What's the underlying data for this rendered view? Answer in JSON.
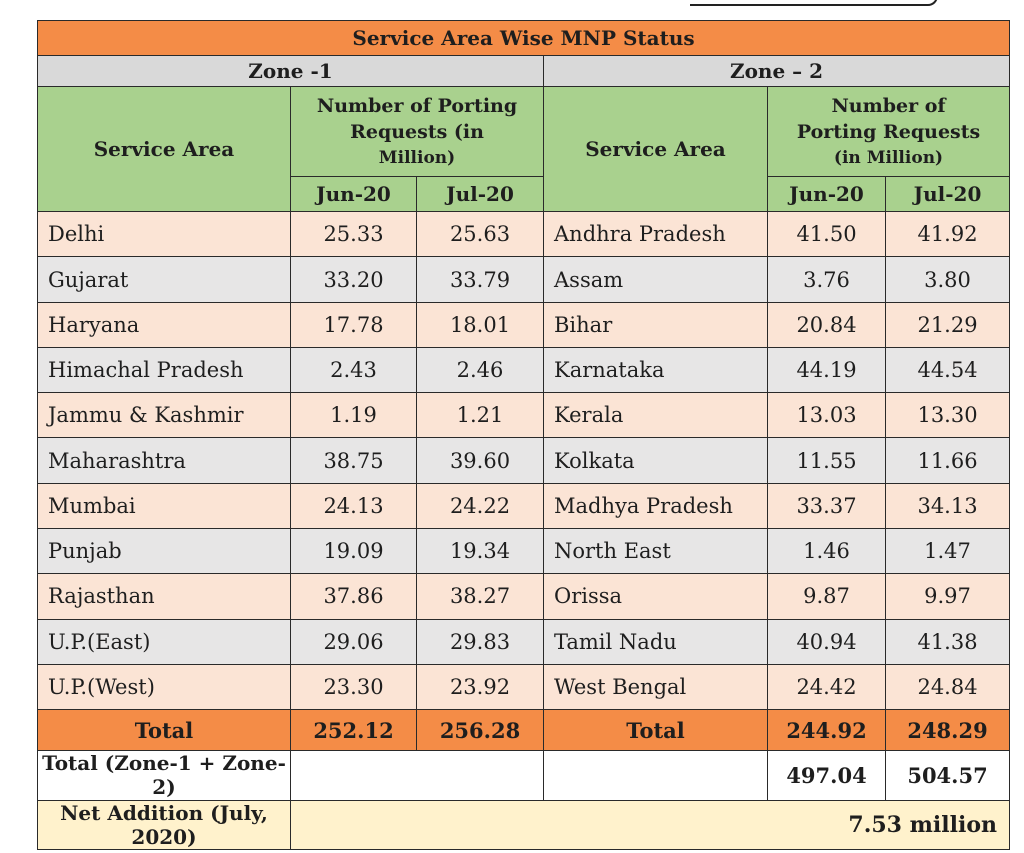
{
  "title": "Service Area Wise MNP Status",
  "zone1": {
    "label": "Zone -1",
    "header": {
      "service_area": "Service Area",
      "number_line1": "Number of Porting",
      "number_line2": "Requests (in",
      "number_line3": "Million)",
      "col_jun": "Jun-20",
      "col_jul": "Jul-20"
    },
    "rows": [
      {
        "area": "Delhi",
        "jun": "25.33",
        "jul": "25.63"
      },
      {
        "area": "Gujarat",
        "jun": "33.20",
        "jul": "33.79"
      },
      {
        "area": "Haryana",
        "jun": "17.78",
        "jul": "18.01"
      },
      {
        "area": "Himachal Pradesh",
        "jun": "2.43",
        "jul": "2.46"
      },
      {
        "area": "Jammu & Kashmir",
        "jun": "1.19",
        "jul": "1.21"
      },
      {
        "area": "Maharashtra",
        "jun": "38.75",
        "jul": "39.60"
      },
      {
        "area": "Mumbai",
        "jun": "24.13",
        "jul": "24.22"
      },
      {
        "area": "Punjab",
        "jun": "19.09",
        "jul": "19.34"
      },
      {
        "area": "Rajasthan",
        "jun": "37.86",
        "jul": "38.27"
      },
      {
        "area": "U.P.(East)",
        "jun": "29.06",
        "jul": "29.83"
      },
      {
        "area": "U.P.(West)",
        "jun": "23.30",
        "jul": "23.92"
      }
    ],
    "total": {
      "label": "Total",
      "jun": "252.12",
      "jul": "256.28"
    }
  },
  "zone2": {
    "label": "Zone – 2",
    "header": {
      "service_area": "Service Area",
      "number_line1": "Number of",
      "number_line2": "Porting Requests",
      "number_line3": "(in Million)",
      "col_jun": "Jun-20",
      "col_jul": "Jul-20"
    },
    "rows": [
      {
        "area": "Andhra Pradesh",
        "jun": "41.50",
        "jul": "41.92"
      },
      {
        "area": "Assam",
        "jun": "3.76",
        "jul": "3.80"
      },
      {
        "area": "Bihar",
        "jun": "20.84",
        "jul": "21.29"
      },
      {
        "area": "Karnataka",
        "jun": "44.19",
        "jul": "44.54"
      },
      {
        "area": "Kerala",
        "jun": "13.03",
        "jul": "13.30"
      },
      {
        "area": "Kolkata",
        "jun": "11.55",
        "jul": "11.66"
      },
      {
        "area": "Madhya Pradesh",
        "jun": "33.37",
        "jul": "34.13"
      },
      {
        "area": "North East",
        "jun": "1.46",
        "jul": "1.47"
      },
      {
        "area": "Orissa",
        "jun": "9.87",
        "jul": "9.97"
      },
      {
        "area": "Tamil Nadu",
        "jun": "40.94",
        "jul": "41.38"
      },
      {
        "area": "West Bengal",
        "jun": "24.42",
        "jul": "24.84"
      }
    ],
    "total": {
      "label": "Total",
      "jun": "244.92",
      "jul": "248.29"
    }
  },
  "grand_total": {
    "label": "Total (Zone-1 + Zone-2)",
    "jun": "497.04",
    "jul": "504.57"
  },
  "net_addition": {
    "label": "Net Addition (July, 2020)",
    "value": "7.53 million"
  },
  "colors": {
    "orange": "#f48c47",
    "green": "#a9d18e",
    "grey": "#d9d9d9",
    "peach": "#fbe4d5",
    "light_grey": "#e7e6e6",
    "cream": "#fff2cc"
  }
}
